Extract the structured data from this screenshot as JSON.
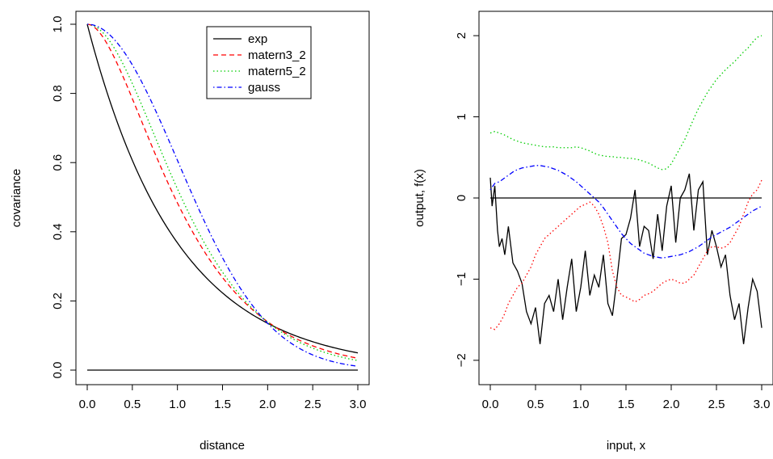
{
  "chart_data": [
    {
      "type": "line",
      "title": "",
      "xlabel": "distance",
      "ylabel": "covariance",
      "xlim": [
        0,
        3
      ],
      "ylim": [
        0,
        1
      ],
      "x_ticks": [
        "0.0",
        "0.5",
        "1.0",
        "1.5",
        "2.0",
        "2.5",
        "3.0"
      ],
      "y_ticks": [
        "0.0",
        "0.2",
        "0.4",
        "0.6",
        "0.8",
        "1.0"
      ],
      "grid": false,
      "legend": "top-right",
      "series": [
        {
          "name": "exp",
          "color": "#000000",
          "dash": "solid",
          "model": "exp",
          "length_scale": 1.0
        },
        {
          "name": "matern3_2",
          "color": "#ff0000",
          "dash": "dashed",
          "model": "matern3_2",
          "length_scale": 1.0
        },
        {
          "name": "matern5_2",
          "color": "#00cd00",
          "dash": "dotted",
          "model": "matern5_2",
          "length_scale": 1.0
        },
        {
          "name": "gauss",
          "color": "#0000ff",
          "dash": "dotdash",
          "model": "gauss",
          "length_scale": 1.0
        }
      ],
      "reference_line": {
        "y": 0,
        "x": [
          0,
          3
        ],
        "color": "#000000"
      }
    },
    {
      "type": "line",
      "title": "",
      "xlabel": "input, x",
      "ylabel": "output, f(x)",
      "xlim": [
        0,
        3
      ],
      "ylim": [
        -2.3,
        2.3
      ],
      "x_ticks": [
        "0.0",
        "0.5",
        "1.0",
        "1.5",
        "2.0",
        "2.5",
        "3.0"
      ],
      "y_ticks": [
        "−2",
        "−1",
        "0",
        "1",
        "2"
      ],
      "grid": false,
      "legend": "none",
      "reference_line": {
        "y": 0,
        "color": "#000000"
      },
      "series": [
        {
          "color": "#000000",
          "dash": "solid",
          "x": [
            0.0,
            0.02,
            0.05,
            0.08,
            0.1,
            0.13,
            0.16,
            0.2,
            0.25,
            0.3,
            0.35,
            0.4,
            0.45,
            0.5,
            0.55,
            0.6,
            0.65,
            0.7,
            0.75,
            0.8,
            0.85,
            0.9,
            0.95,
            1.0,
            1.05,
            1.1,
            1.15,
            1.2,
            1.25,
            1.3,
            1.35,
            1.4,
            1.45,
            1.5,
            1.55,
            1.6,
            1.65,
            1.7,
            1.75,
            1.8,
            1.85,
            1.9,
            1.95,
            2.0,
            2.05,
            2.1,
            2.15,
            2.2,
            2.25,
            2.3,
            2.35,
            2.4,
            2.45,
            2.5,
            2.55,
            2.6,
            2.65,
            2.7,
            2.75,
            2.8,
            2.85,
            2.9,
            2.95,
            3.0
          ],
          "y": [
            0.25,
            -0.1,
            0.15,
            -0.4,
            -0.6,
            -0.5,
            -0.7,
            -0.35,
            -0.8,
            -0.9,
            -1.05,
            -1.4,
            -1.55,
            -1.35,
            -1.8,
            -1.3,
            -1.2,
            -1.4,
            -1.0,
            -1.5,
            -1.1,
            -0.75,
            -1.4,
            -1.1,
            -0.65,
            -1.2,
            -0.95,
            -1.1,
            -0.7,
            -1.3,
            -1.45,
            -1.0,
            -0.5,
            -0.45,
            -0.25,
            0.1,
            -0.6,
            -0.35,
            -0.4,
            -0.75,
            -0.2,
            -0.65,
            -0.1,
            0.15,
            -0.55,
            0.0,
            0.1,
            0.3,
            -0.4,
            0.1,
            0.2,
            -0.7,
            -0.4,
            -0.6,
            -0.85,
            -0.7,
            -1.2,
            -1.5,
            -1.3,
            -1.8,
            -1.35,
            -1.0,
            -1.15,
            -1.6
          ]
        },
        {
          "color": "#ff0000",
          "dash": "dotted",
          "x": [
            0.0,
            0.05,
            0.1,
            0.15,
            0.2,
            0.25,
            0.3,
            0.35,
            0.4,
            0.45,
            0.5,
            0.55,
            0.6,
            0.65,
            0.7,
            0.75,
            0.8,
            0.85,
            0.9,
            0.95,
            1.0,
            1.05,
            1.1,
            1.15,
            1.2,
            1.25,
            1.3,
            1.35,
            1.4,
            1.45,
            1.5,
            1.55,
            1.6,
            1.65,
            1.7,
            1.75,
            1.8,
            1.85,
            1.9,
            1.95,
            2.0,
            2.05,
            2.1,
            2.15,
            2.2,
            2.25,
            2.3,
            2.35,
            2.4,
            2.45,
            2.5,
            2.55,
            2.6,
            2.65,
            2.7,
            2.75,
            2.8,
            2.85,
            2.9,
            2.95,
            3.0
          ],
          "y": [
            -1.6,
            -1.62,
            -1.55,
            -1.45,
            -1.3,
            -1.2,
            -1.1,
            -1.05,
            -0.95,
            -0.85,
            -0.7,
            -0.6,
            -0.5,
            -0.45,
            -0.4,
            -0.35,
            -0.3,
            -0.25,
            -0.2,
            -0.15,
            -0.1,
            -0.08,
            -0.05,
            -0.1,
            -0.2,
            -0.35,
            -0.55,
            -0.9,
            -1.1,
            -1.2,
            -1.22,
            -1.25,
            -1.28,
            -1.25,
            -1.2,
            -1.18,
            -1.15,
            -1.1,
            -1.05,
            -1.02,
            -1.0,
            -1.02,
            -1.05,
            -1.05,
            -1.0,
            -0.95,
            -0.85,
            -0.75,
            -0.65,
            -0.6,
            -0.6,
            -0.62,
            -0.6,
            -0.55,
            -0.45,
            -0.35,
            -0.2,
            -0.05,
            0.05,
            0.1,
            0.22
          ]
        },
        {
          "color": "#00cd00",
          "dash": "dotted",
          "x": [
            0.0,
            0.05,
            0.1,
            0.15,
            0.2,
            0.25,
            0.3,
            0.35,
            0.4,
            0.45,
            0.5,
            0.55,
            0.6,
            0.65,
            0.7,
            0.75,
            0.8,
            0.85,
            0.9,
            0.95,
            1.0,
            1.05,
            1.1,
            1.15,
            1.2,
            1.25,
            1.3,
            1.35,
            1.4,
            1.45,
            1.5,
            1.55,
            1.6,
            1.65,
            1.7,
            1.75,
            1.8,
            1.85,
            1.9,
            1.95,
            2.0,
            2.05,
            2.1,
            2.15,
            2.2,
            2.25,
            2.3,
            2.35,
            2.4,
            2.45,
            2.5,
            2.55,
            2.6,
            2.65,
            2.7,
            2.75,
            2.8,
            2.85,
            2.9,
            2.95,
            3.0
          ],
          "y": [
            0.8,
            0.82,
            0.8,
            0.78,
            0.75,
            0.72,
            0.7,
            0.68,
            0.67,
            0.66,
            0.65,
            0.64,
            0.63,
            0.63,
            0.63,
            0.62,
            0.62,
            0.62,
            0.62,
            0.63,
            0.62,
            0.6,
            0.58,
            0.55,
            0.53,
            0.52,
            0.51,
            0.51,
            0.5,
            0.5,
            0.49,
            0.49,
            0.48,
            0.47,
            0.45,
            0.43,
            0.4,
            0.37,
            0.35,
            0.36,
            0.42,
            0.52,
            0.62,
            0.72,
            0.85,
            0.98,
            1.1,
            1.2,
            1.3,
            1.38,
            1.46,
            1.52,
            1.58,
            1.63,
            1.68,
            1.74,
            1.8,
            1.85,
            1.92,
            1.98,
            2.0
          ]
        },
        {
          "color": "#0000ff",
          "dash": "dotdash",
          "x": [
            0.0,
            0.05,
            0.1,
            0.15,
            0.2,
            0.25,
            0.3,
            0.35,
            0.4,
            0.45,
            0.5,
            0.55,
            0.6,
            0.65,
            0.7,
            0.75,
            0.8,
            0.85,
            0.9,
            0.95,
            1.0,
            1.05,
            1.1,
            1.15,
            1.2,
            1.25,
            1.3,
            1.35,
            1.4,
            1.45,
            1.5,
            1.55,
            1.6,
            1.65,
            1.7,
            1.75,
            1.8,
            1.85,
            1.9,
            1.95,
            2.0,
            2.05,
            2.1,
            2.15,
            2.2,
            2.25,
            2.3,
            2.35,
            2.4,
            2.45,
            2.5,
            2.55,
            2.6,
            2.65,
            2.7,
            2.75,
            2.8,
            2.85,
            2.9,
            2.95,
            3.0
          ],
          "y": [
            0.1,
            0.18,
            0.2,
            0.24,
            0.28,
            0.32,
            0.35,
            0.37,
            0.38,
            0.39,
            0.4,
            0.4,
            0.39,
            0.38,
            0.36,
            0.34,
            0.31,
            0.28,
            0.24,
            0.2,
            0.15,
            0.1,
            0.05,
            0.0,
            -0.05,
            -0.12,
            -0.2,
            -0.28,
            -0.36,
            -0.44,
            -0.5,
            -0.56,
            -0.6,
            -0.64,
            -0.68,
            -0.7,
            -0.72,
            -0.73,
            -0.74,
            -0.73,
            -0.72,
            -0.71,
            -0.7,
            -0.68,
            -0.66,
            -0.63,
            -0.6,
            -0.56,
            -0.52,
            -0.48,
            -0.45,
            -0.42,
            -0.39,
            -0.36,
            -0.32,
            -0.28,
            -0.24,
            -0.2,
            -0.16,
            -0.13,
            -0.1
          ]
        }
      ]
    }
  ]
}
